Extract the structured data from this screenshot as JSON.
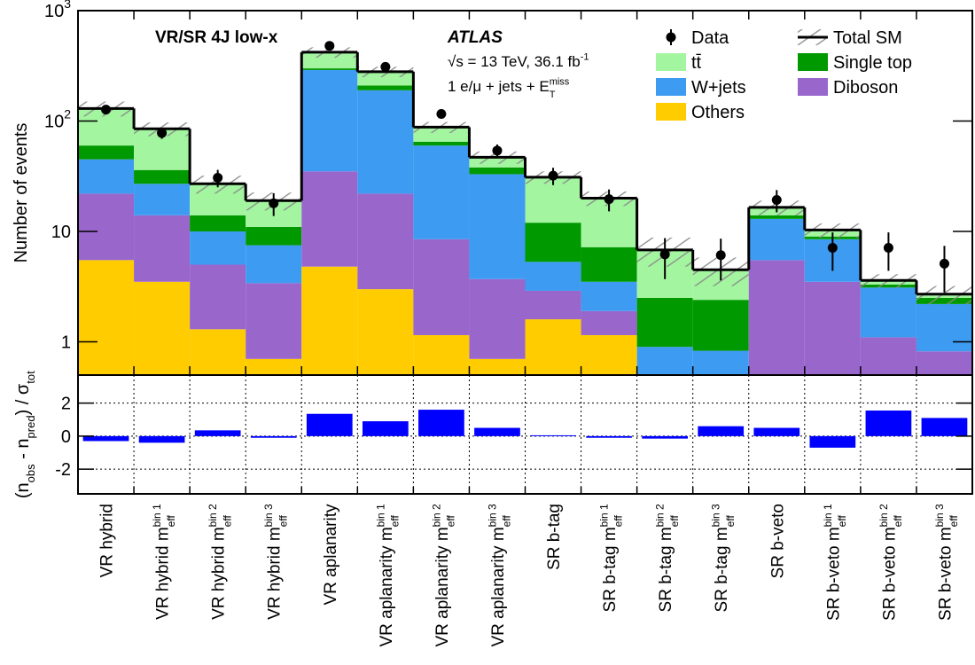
{
  "chart_data": [
    {
      "type": "histogram",
      "ylabel": "Number of events",
      "log_scale": true,
      "ylim": [
        0.5,
        1000
      ],
      "yticks": [
        1,
        10,
        {
          "value": 100,
          "label": "10",
          "sup": "2"
        },
        {
          "value": 1000,
          "label": "10",
          "sup": "3"
        }
      ],
      "annotations": [
        {
          "text": "VR/SR 4J low-x"
        },
        {
          "text": "ATLAS"
        },
        {
          "text": "√s = 13 TeV, 36.1 fb",
          "sup": "-1"
        },
        {
          "text": "1 e/μ + jets + E",
          "sup": "miss",
          "sub": "T"
        }
      ],
      "series": [
        {
          "name": "Others",
          "color": "#ffcc00",
          "values": [
            5.5,
            3.5,
            1.3,
            0.7,
            4.8,
            3,
            1.15,
            0.7,
            1.6,
            1.15,
            0,
            0,
            0,
            0,
            0,
            0
          ]
        },
        {
          "name": "Diboson",
          "color": "#9966cc",
          "values": [
            16.5,
            10.5,
            3.7,
            2.7,
            30.2,
            19,
            7.35,
            3,
            1.3,
            0.75,
            0,
            0,
            5.5,
            3.5,
            1.1,
            0.82
          ]
        },
        {
          "name": "W+jets",
          "color": "#3d9bf2",
          "values": [
            23,
            13,
            5,
            4.1,
            255,
            168,
            51.5,
            29.3,
            2.4,
            1.6,
            0.9,
            0.83,
            7.5,
            5,
            2,
            1.38
          ]
        },
        {
          "name": "Single top",
          "color": "#009900",
          "values": [
            15,
            9,
            4,
            3.5,
            10,
            20,
            5,
            5,
            6.7,
            3.7,
            1.6,
            1.57,
            1,
            0.5,
            0.2,
            0.3
          ]
        },
        {
          "name": "tt̄",
          "color": "#a3f5a0",
          "values": [
            70,
            49,
            13,
            8,
            120,
            70,
            23,
            9,
            19,
            12.8,
            4.3,
            2.1,
            2.5,
            1.3,
            0.3,
            0.2
          ]
        }
      ],
      "data": {
        "name": "Data",
        "color": "#000000",
        "values": [
          127,
          78,
          30.6,
          18,
          480,
          310,
          116,
          54,
          32,
          19.6,
          6.2,
          6.1,
          19.3,
          7.1,
          7.1,
          5.1
        ],
        "errors": [
          11,
          9,
          5.5,
          4.2,
          22,
          18,
          11,
          7.3,
          5.7,
          4.4,
          2.5,
          2.5,
          4.4,
          2.7,
          2.7,
          2.3
        ]
      },
      "total": {
        "name": "Total SM",
        "color": "#000000",
        "values": [
          130,
          85,
          27,
          19,
          420,
          280,
          88,
          47,
          31,
          20,
          6.8,
          4.5,
          16.5,
          10.3,
          3.6,
          2.7
        ],
        "uncertainty": [
          20,
          12,
          5,
          3.5,
          45,
          30,
          10,
          6,
          4,
          3,
          2,
          1.3,
          2.5,
          1.5,
          0.5,
          0.5
        ]
      }
    },
    {
      "type": "bar",
      "ylabel_parts": [
        {
          "text": "(n",
          "sub": "obs"
        },
        {
          "text": " - n",
          "sub": "pred"
        },
        {
          "text": ") / σ",
          "sub": "tot"
        }
      ],
      "categories": [
        {
          "text": "VR hybrid"
        },
        {
          "text": "VR hybrid m",
          "sup": "bin 1",
          "sub": "eff"
        },
        {
          "text": "VR hybrid m",
          "sup": "bin 2",
          "sub": "eff"
        },
        {
          "text": "VR hybrid m",
          "sup": "bin 3",
          "sub": "eff"
        },
        {
          "text": "VR aplanarity"
        },
        {
          "text": "VR aplanarity m",
          "sup": "bin 1",
          "sub": "eff"
        },
        {
          "text": "VR aplanarity m",
          "sup": "bin 2",
          "sub": "eff"
        },
        {
          "text": "VR aplanarity m",
          "sup": "bin 3",
          "sub": "eff"
        },
        {
          "text": "SR b-tag"
        },
        {
          "text": "SR b-tag m",
          "sup": "bin 1",
          "sub": "eff"
        },
        {
          "text": "SR b-tag m",
          "sup": "bin 2",
          "sub": "eff"
        },
        {
          "text": "SR b-tag m",
          "sup": "bin 3",
          "sub": "eff"
        },
        {
          "text": "SR b-veto"
        },
        {
          "text": "SR b-veto m",
          "sup": "bin 1",
          "sub": "eff"
        },
        {
          "text": "SR b-veto m",
          "sup": "bin 2",
          "sub": "eff"
        },
        {
          "text": "SR b-veto m",
          "sup": "bin 3",
          "sub": "eff"
        }
      ],
      "values": [
        -0.3,
        -0.4,
        0.35,
        -0.1,
        1.35,
        0.9,
        1.6,
        0.5,
        0.05,
        -0.1,
        -0.15,
        0.6,
        0.5,
        -0.7,
        1.55,
        1.1
      ],
      "color": "#0000ff",
      "ylim": [
        -3.5,
        3.7
      ],
      "yticks": [
        -2,
        0,
        2
      ],
      "grid": true
    }
  ]
}
